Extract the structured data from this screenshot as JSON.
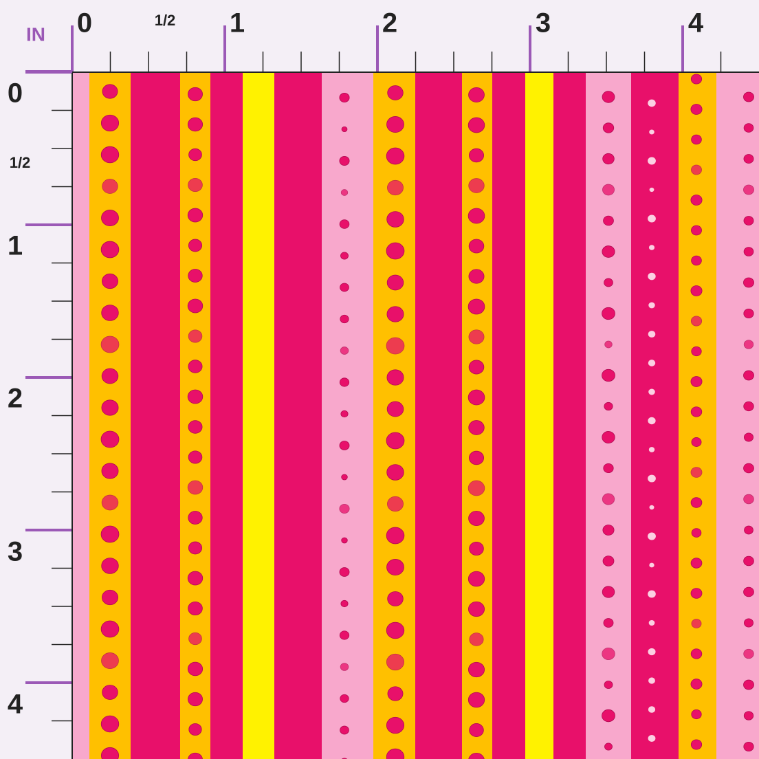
{
  "ruler": {
    "unit": "IN",
    "top_labels": [
      "0",
      "1/2",
      "1",
      "2",
      "3",
      "4"
    ],
    "left_labels": [
      "0",
      "1/2",
      "1",
      "2",
      "3",
      "4"
    ]
  }
}
